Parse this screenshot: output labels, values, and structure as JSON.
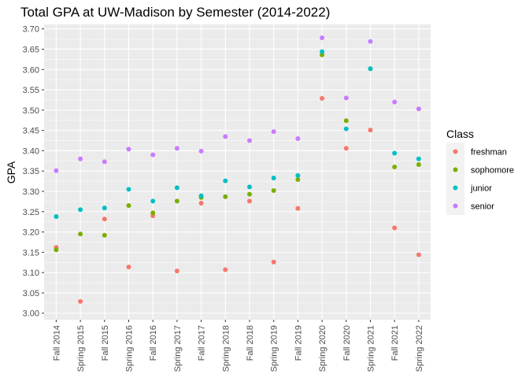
{
  "chart_data": {
    "type": "scatter",
    "title": "Total GPA at UW-Madison by Semester (2014-2022)",
    "xlabel": "",
    "ylabel": "GPA",
    "ylim": [
      3.0,
      3.7
    ],
    "yticks": [
      "3.00",
      "3.05",
      "3.10",
      "3.15",
      "3.20",
      "3.25",
      "3.30",
      "3.35",
      "3.40",
      "3.45",
      "3.50",
      "3.55",
      "3.60",
      "3.65",
      "3.70"
    ],
    "categories": [
      "Fall 2014",
      "Spring 2015",
      "Fall 2015",
      "Spring 2016",
      "Fall 2016",
      "Spring 2017",
      "Fall 2017",
      "Spring 2018",
      "Fall 2018",
      "Spring 2019",
      "Fall 2019",
      "Spring 2020",
      "Fall 2020",
      "Spring 2021",
      "Fall 2021",
      "Spring 2022"
    ],
    "legend_title": "Class",
    "legend_position": "right",
    "grid": true,
    "series": [
      {
        "name": "freshman",
        "color": "#F8766D",
        "values": [
          3.162,
          3.029,
          3.232,
          3.114,
          3.24,
          3.104,
          3.271,
          3.107,
          3.276,
          3.126,
          3.258,
          3.529,
          3.406,
          3.451,
          3.21,
          3.144
        ]
      },
      {
        "name": "sophomore",
        "color": "#7CAE00",
        "values": [
          3.156,
          3.195,
          3.192,
          3.265,
          3.247,
          3.276,
          3.285,
          3.287,
          3.293,
          3.302,
          3.329,
          3.636,
          3.474,
          3.602,
          3.36,
          3.366
        ]
      },
      {
        "name": "junior",
        "color": "#00BFC4",
        "values": [
          3.238,
          3.255,
          3.259,
          3.305,
          3.276,
          3.309,
          3.289,
          3.326,
          3.311,
          3.333,
          3.339,
          3.644,
          3.454,
          3.602,
          3.394,
          3.38
        ]
      },
      {
        "name": "senior",
        "color": "#C77CFF",
        "values": [
          3.351,
          3.38,
          3.373,
          3.404,
          3.39,
          3.406,
          3.399,
          3.435,
          3.425,
          3.447,
          3.43,
          3.678,
          3.53,
          3.669,
          3.52,
          3.503
        ]
      }
    ]
  }
}
